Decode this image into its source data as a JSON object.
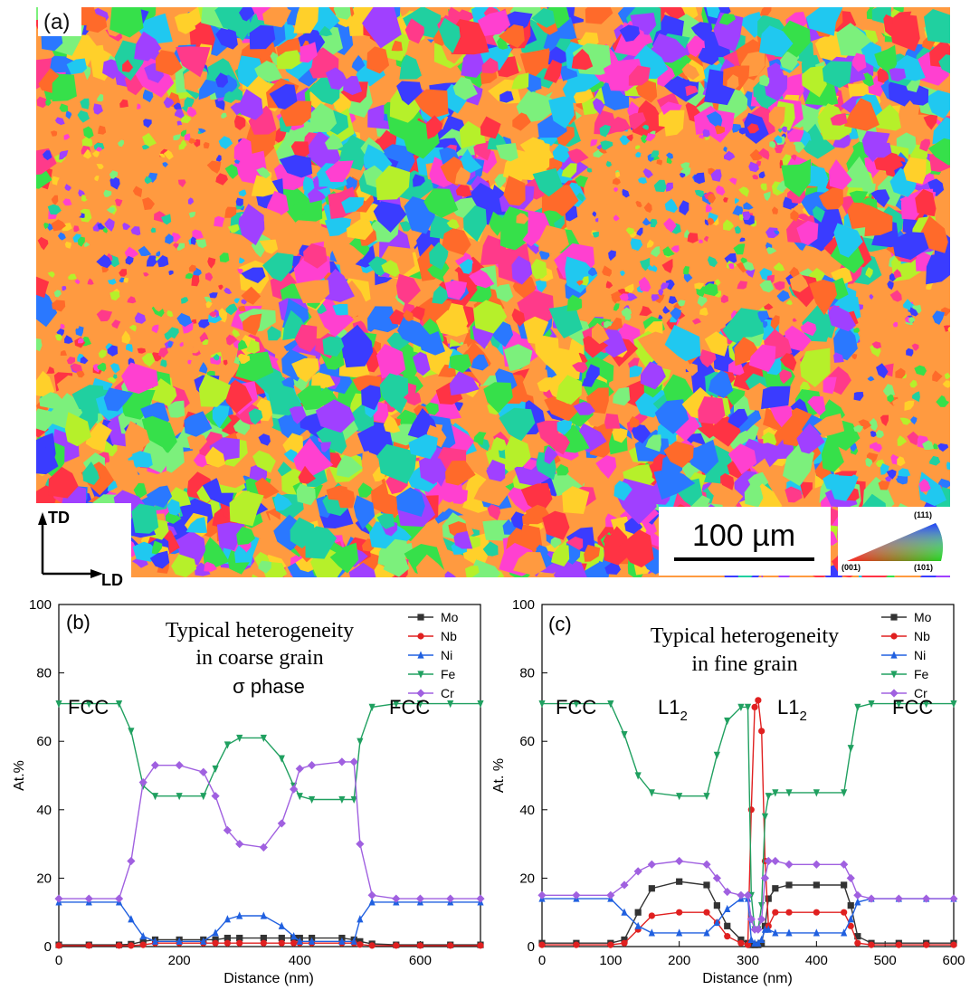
{
  "panel_a": {
    "label": "(a)",
    "axis_td": "TD",
    "axis_ld": "LD",
    "scale_bar": "100 µm",
    "ipf_key": {
      "top": "(111)",
      "left": "(001)",
      "right": "(101)"
    }
  },
  "chart_data": [
    {
      "type": "line",
      "panel": "(b)",
      "title": "",
      "annotation": [
        "Typical heterogeneity",
        "in coarse grain"
      ],
      "region_labels": {
        "left": "FCC",
        "middle": "σ phase",
        "right": "FCC"
      },
      "xlabel": "Distance (nm)",
      "ylabel": "At.%",
      "xlim": [
        0,
        700
      ],
      "ylim": [
        0,
        100
      ],
      "xticks": [
        0,
        200,
        400,
        600
      ],
      "yticks": [
        0,
        20,
        40,
        60,
        80,
        100
      ],
      "legend_position": "top-right",
      "x": [
        0,
        50,
        100,
        120,
        140,
        160,
        200,
        240,
        260,
        280,
        300,
        340,
        370,
        390,
        400,
        420,
        470,
        490,
        500,
        520,
        560,
        600,
        650,
        700
      ],
      "series": [
        {
          "name": "Mo",
          "color": "#333333",
          "values": [
            0.5,
            0.5,
            0.5,
            0.7,
            1.5,
            2,
            2,
            2,
            2,
            2.5,
            2.5,
            2.5,
            2.5,
            2.5,
            2.5,
            2.5,
            2.5,
            2,
            1.5,
            0.8,
            0.5,
            0.5,
            0.5,
            0.5
          ]
        },
        {
          "name": "Nb",
          "color": "#e02020",
          "values": [
            0.3,
            0.3,
            0.3,
            0.3,
            0.5,
            1,
            1,
            1,
            1,
            1,
            1,
            1,
            1,
            1,
            1,
            1,
            1,
            1,
            0.6,
            0.3,
            0.3,
            0.3,
            0.3,
            0.3
          ]
        },
        {
          "name": "Ni",
          "color": "#2060e0",
          "values": [
            13,
            13,
            13,
            8,
            3,
            1.5,
            1.5,
            1.5,
            4,
            8,
            9,
            9,
            6,
            3,
            1.5,
            1.5,
            1.5,
            1.5,
            8,
            13,
            13,
            13,
            13,
            13
          ]
        },
        {
          "name": "Fe",
          "color": "#20a060",
          "values": [
            71,
            71,
            71,
            63,
            47,
            44,
            44,
            44,
            52,
            59,
            61,
            61,
            55,
            47,
            44,
            43,
            43,
            43,
            60,
            70,
            71,
            71,
            71,
            71
          ]
        },
        {
          "name": "Cr",
          "color": "#a060e0",
          "values": [
            14,
            14,
            14,
            25,
            48,
            53,
            53,
            51,
            44,
            34,
            30,
            29,
            36,
            46,
            52,
            53,
            54,
            54,
            30,
            15,
            14,
            14,
            14,
            14
          ]
        }
      ]
    },
    {
      "type": "line",
      "panel": "(c)",
      "title": "",
      "annotation": [
        "Typical heterogeneity",
        "in fine grain"
      ],
      "region_labels": {
        "fcc_left": "FCC",
        "l12_left": "L1",
        "l12_right": "L1",
        "l12_sub": "2",
        "fcc_right": "FCC"
      },
      "xlabel": "Distance (nm)",
      "ylabel": "At. %",
      "xlim": [
        0,
        600
      ],
      "ylim": [
        0,
        100
      ],
      "xticks": [
        0,
        100,
        200,
        300,
        400,
        500,
        600
      ],
      "yticks": [
        0,
        20,
        40,
        60,
        80,
        100
      ],
      "legend_position": "top-right",
      "x": [
        0,
        50,
        100,
        120,
        140,
        160,
        200,
        240,
        255,
        270,
        290,
        300,
        305,
        310,
        315,
        320,
        325,
        330,
        340,
        360,
        400,
        440,
        450,
        460,
        480,
        520,
        560,
        600
      ],
      "series": [
        {
          "name": "Mo",
          "color": "#333333",
          "values": [
            1,
            1,
            1,
            2,
            10,
            17,
            19,
            18,
            12,
            6,
            2,
            1,
            0.5,
            0.5,
            0.5,
            1,
            6,
            14,
            17,
            18,
            18,
            18,
            12,
            3,
            1,
            1,
            1,
            1
          ]
        },
        {
          "name": "Nb",
          "color": "#e02020",
          "values": [
            0.5,
            0.5,
            0.5,
            1,
            5,
            9,
            10,
            10,
            7,
            3,
            1,
            0.5,
            40,
            70,
            72,
            63,
            25,
            6,
            10,
            10,
            10,
            10,
            6,
            1,
            0.5,
            0.5,
            0.5,
            0.5
          ]
        },
        {
          "name": "Ni",
          "color": "#2060e0",
          "values": [
            14,
            14,
            14,
            10,
            6,
            4,
            4,
            4,
            7,
            11,
            14,
            14,
            2,
            1,
            1,
            2,
            5,
            5,
            4,
            4,
            4,
            4,
            8,
            13,
            14,
            14,
            14,
            14
          ]
        },
        {
          "name": "Fe",
          "color": "#20a060",
          "values": [
            71,
            71,
            71,
            62,
            50,
            45,
            44,
            44,
            56,
            66,
            70,
            70,
            15,
            5,
            5,
            12,
            38,
            44,
            45,
            45,
            45,
            45,
            58,
            70,
            71,
            71,
            71,
            71
          ]
        },
        {
          "name": "Cr",
          "color": "#a060e0",
          "values": [
            15,
            15,
            15,
            18,
            22,
            24,
            25,
            24,
            20,
            16,
            15,
            15,
            8,
            5,
            5,
            8,
            20,
            25,
            25,
            24,
            24,
            24,
            20,
            15,
            14,
            14,
            14,
            14
          ]
        }
      ]
    }
  ]
}
